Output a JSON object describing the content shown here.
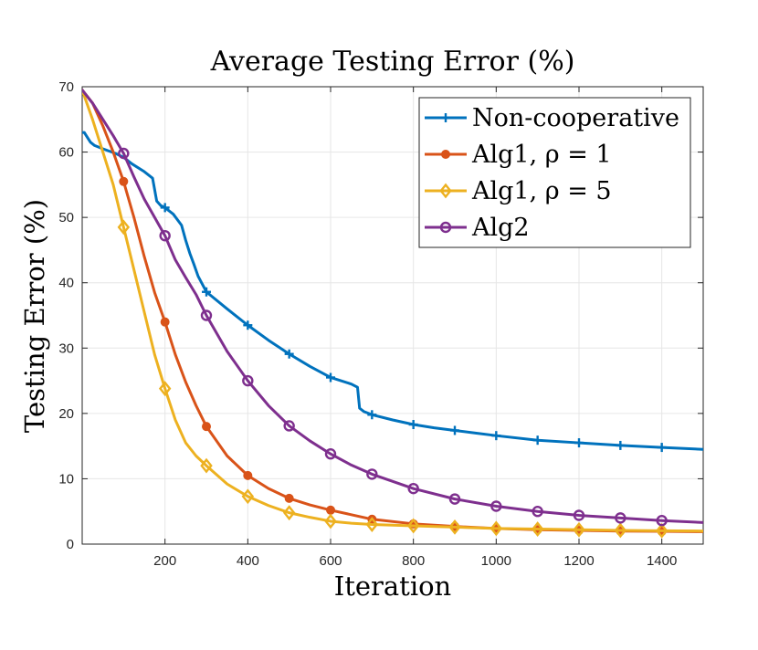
{
  "chart_data": {
    "type": "line",
    "title": "Average Testing Error (%)",
    "xlabel": "Iteration",
    "ylabel": "Testing Error (%)",
    "xlim": [
      0,
      1500
    ],
    "ylim": [
      0,
      70
    ],
    "xticks": [
      200,
      400,
      600,
      800,
      1000,
      1200,
      1400
    ],
    "xtick_labels": [
      "200",
      "400",
      "600",
      "800",
      "1000",
      "1200",
      "1400"
    ],
    "yticks": [
      0,
      10,
      20,
      30,
      40,
      50,
      60,
      70
    ],
    "ytick_labels": [
      "0",
      "10",
      "20",
      "30",
      "40",
      "50",
      "60",
      "70"
    ],
    "grid": true,
    "legend_position": "top-right",
    "series": [
      {
        "name": "Non-cooperative",
        "legend_label": "Non-cooperative",
        "color": "#0072BD",
        "marker": "plus",
        "x": [
          0,
          5,
          10,
          20,
          30,
          50,
          80,
          100,
          120,
          150,
          170,
          180,
          190,
          200,
          220,
          240,
          250,
          260,
          270,
          280,
          300,
          350,
          400,
          450,
          500,
          550,
          600,
          650,
          665,
          670,
          680,
          700,
          750,
          800,
          850,
          900,
          950,
          1000,
          1100,
          1200,
          1300,
          1400,
          1500
        ],
        "values": [
          63.0,
          63.0,
          62.5,
          61.5,
          61.0,
          60.5,
          59.8,
          59.2,
          58.2,
          57.0,
          56.0,
          52.5,
          51.8,
          51.5,
          50.5,
          48.8,
          46.5,
          44.5,
          42.8,
          41.0,
          38.6,
          36.0,
          33.5,
          31.2,
          29.1,
          27.2,
          25.5,
          24.5,
          24.0,
          20.8,
          20.3,
          19.8,
          19.0,
          18.3,
          17.8,
          17.4,
          17.0,
          16.6,
          15.9,
          15.5,
          15.1,
          14.8,
          14.5
        ],
        "marker_x": [
          200,
          300,
          400,
          500,
          600,
          700,
          800,
          900,
          1000,
          1100,
          1200,
          1300,
          1400
        ],
        "marker_values": [
          51.5,
          38.6,
          33.5,
          29.1,
          25.5,
          19.8,
          18.3,
          17.4,
          16.6,
          15.9,
          15.5,
          15.1,
          14.8
        ]
      },
      {
        "name": "Alg1, rho = 1",
        "legend_label": "Alg1, ρ = 1",
        "color": "#D95319",
        "marker": "dot",
        "x": [
          0,
          25,
          50,
          75,
          100,
          125,
          150,
          175,
          200,
          225,
          250,
          275,
          300,
          350,
          400,
          450,
          500,
          550,
          600,
          650,
          700,
          800,
          900,
          1000,
          1100,
          1200,
          1300,
          1400,
          1500
        ],
        "values": [
          69.5,
          67.5,
          64.0,
          60.0,
          55.5,
          50.0,
          44.0,
          38.5,
          34.0,
          29.0,
          24.8,
          21.2,
          18.0,
          13.5,
          10.5,
          8.5,
          7.0,
          6.0,
          5.2,
          4.5,
          3.8,
          3.1,
          2.7,
          2.4,
          2.2,
          2.1,
          2.0,
          1.95,
          1.9
        ],
        "marker_x": [
          100,
          200,
          300,
          400,
          500,
          600,
          700,
          800,
          900,
          1000,
          1100,
          1200,
          1300,
          1400
        ],
        "marker_values": [
          55.5,
          34.0,
          18.0,
          10.5,
          7.0,
          5.2,
          3.8,
          3.1,
          2.7,
          2.4,
          2.2,
          2.1,
          2.0,
          1.95
        ]
      },
      {
        "name": "Alg1, rho = 5",
        "legend_label": "Alg1, ρ = 5",
        "color": "#EDB120",
        "marker": "diamond",
        "x": [
          0,
          25,
          50,
          75,
          100,
          125,
          150,
          175,
          200,
          225,
          250,
          275,
          300,
          350,
          400,
          450,
          500,
          550,
          600,
          650,
          700,
          800,
          900,
          1000,
          1100,
          1200,
          1300,
          1400,
          1500
        ],
        "values": [
          69.5,
          65.0,
          60.0,
          55.0,
          48.5,
          42.0,
          35.5,
          29.0,
          23.8,
          19.0,
          15.5,
          13.5,
          12.0,
          9.2,
          7.3,
          5.9,
          4.8,
          4.1,
          3.5,
          3.2,
          3.0,
          2.8,
          2.6,
          2.4,
          2.3,
          2.2,
          2.1,
          2.05,
          2.0
        ],
        "marker_x": [
          100,
          200,
          300,
          400,
          500,
          600,
          700,
          800,
          900,
          1000,
          1100,
          1200,
          1300,
          1400
        ],
        "marker_values": [
          48.5,
          23.8,
          12.0,
          7.3,
          4.8,
          3.5,
          3.0,
          2.8,
          2.6,
          2.4,
          2.3,
          2.2,
          2.1,
          2.05
        ]
      },
      {
        "name": "Alg2",
        "legend_label": "Alg2",
        "color": "#7E2F8E",
        "marker": "circle",
        "x": [
          0,
          25,
          50,
          75,
          100,
          125,
          150,
          175,
          200,
          225,
          250,
          275,
          300,
          350,
          400,
          450,
          500,
          550,
          600,
          650,
          700,
          800,
          900,
          1000,
          1100,
          1200,
          1300,
          1400,
          1500
        ],
        "values": [
          69.5,
          67.5,
          65.0,
          62.5,
          59.8,
          56.2,
          52.8,
          50.0,
          47.2,
          43.5,
          40.8,
          38.2,
          35.0,
          29.5,
          25.0,
          21.2,
          18.1,
          15.8,
          13.8,
          12.1,
          10.7,
          8.5,
          6.9,
          5.8,
          5.0,
          4.4,
          4.0,
          3.6,
          3.3
        ],
        "marker_x": [
          100,
          200,
          300,
          400,
          500,
          600,
          700,
          800,
          900,
          1000,
          1100,
          1200,
          1300,
          1400
        ],
        "marker_values": [
          59.8,
          47.2,
          35.0,
          25.0,
          18.1,
          13.8,
          10.7,
          8.5,
          6.9,
          5.8,
          5.0,
          4.4,
          4.0,
          3.6
        ]
      }
    ]
  }
}
